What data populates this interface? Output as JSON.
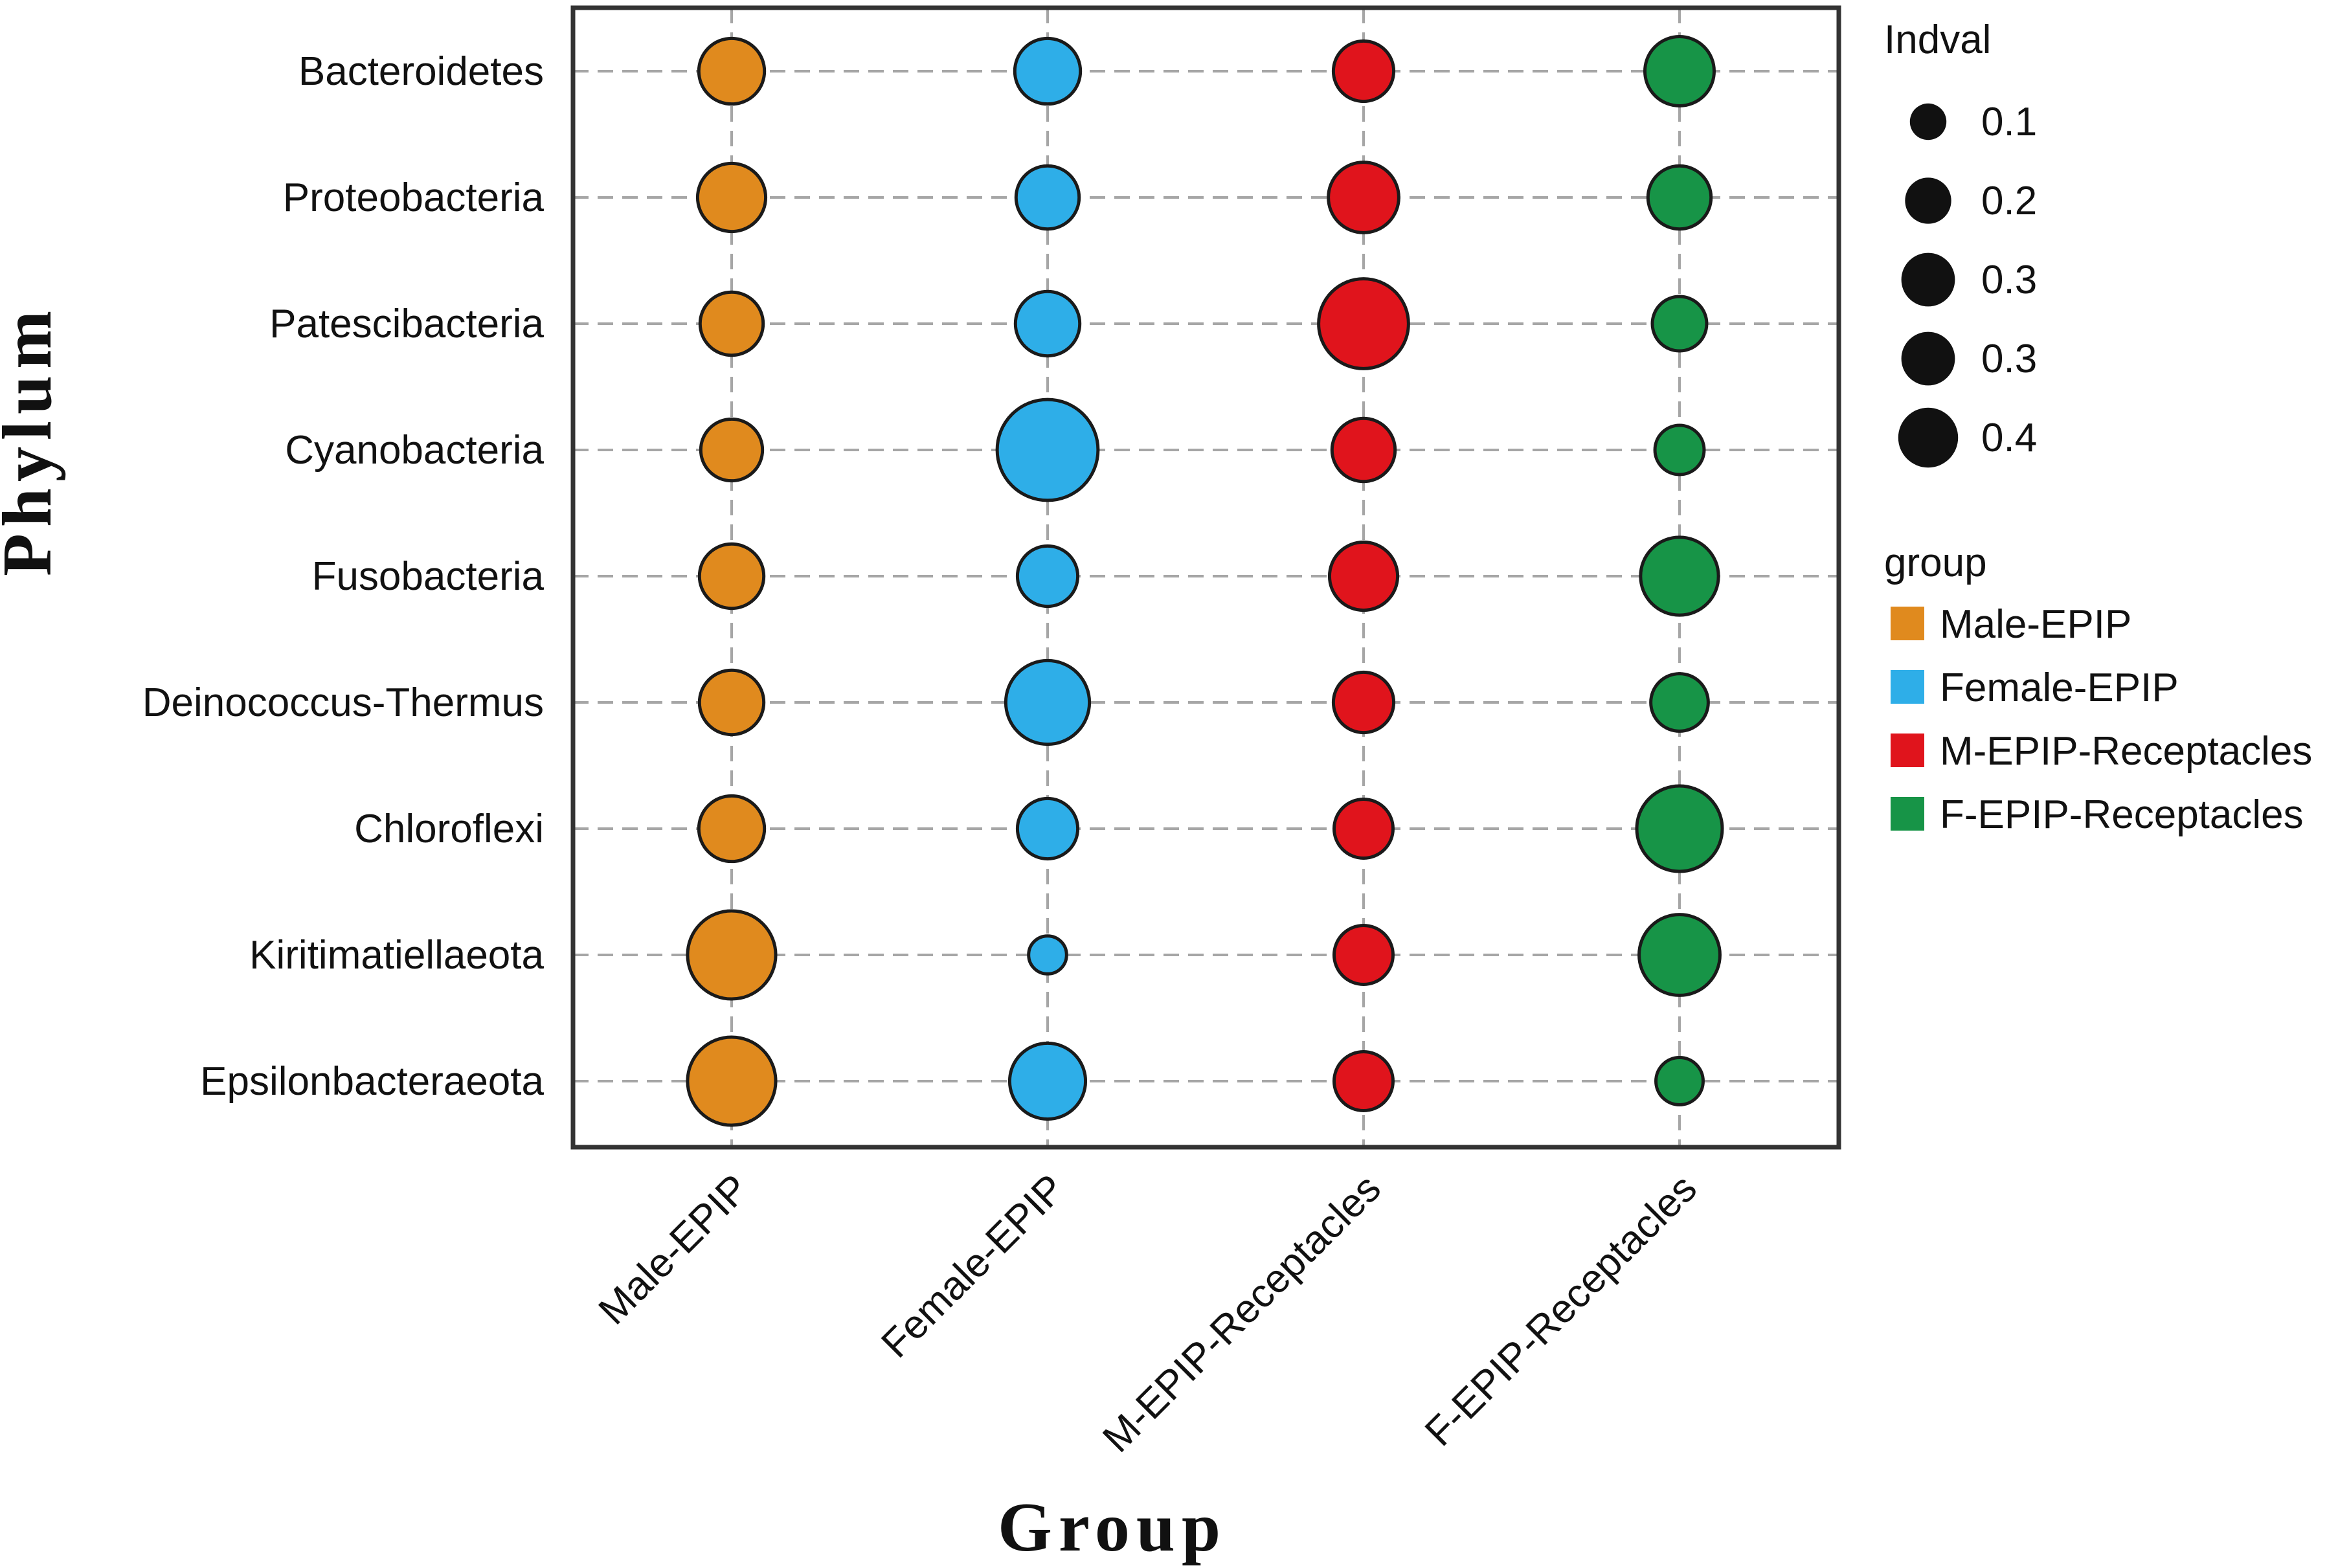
{
  "chart_data": {
    "type": "scatter",
    "xlabel": "Group",
    "ylabel": "Phylum",
    "categories_x": [
      "Male-EPIP",
      "Female-EPIP",
      "M-EPIP-Receptacles",
      "F-EPIP-Receptacles"
    ],
    "categories_y": [
      "Bacteroidetes",
      "Proteobacteria",
      "Patescibacteria",
      "Cyanobacteria",
      "Fusobacteria",
      "Deinococcus-Thermus",
      "Chloroflexi",
      "Kiritimatiellaeota",
      "Epsilonbacteraeota"
    ],
    "series": [
      {
        "name": "Male-EPIP",
        "color": "#e08a1e",
        "values": [
          0.2,
          0.22,
          0.18,
          0.17,
          0.19,
          0.19,
          0.2,
          0.42,
          0.42
        ]
      },
      {
        "name": "Female-EPIP",
        "color": "#2eaee8",
        "values": [
          0.2,
          0.18,
          0.19,
          0.58,
          0.16,
          0.37,
          0.16,
          0.04,
          0.29
        ]
      },
      {
        "name": "M-EPIP-Receptacles",
        "color": "#e0141c",
        "values": [
          0.16,
          0.24,
          0.44,
          0.18,
          0.22,
          0.16,
          0.15,
          0.15,
          0.15
        ]
      },
      {
        "name": "F-EPIP-Receptacles",
        "color": "#179447",
        "values": [
          0.23,
          0.18,
          0.12,
          0.09,
          0.31,
          0.14,
          0.39,
          0.34,
          0.08
        ]
      }
    ],
    "size_legend": {
      "title": "Indval",
      "values": [
        0.1,
        0.2,
        0.3,
        0.3,
        0.4
      ],
      "labels": [
        "0.1",
        "0.2",
        "0.3",
        "0.3",
        "0.4"
      ]
    },
    "color_legend": {
      "title": "group",
      "items": [
        {
          "label": "Male-EPIP",
          "color": "#e08a1e"
        },
        {
          "label": "Female-EPIP",
          "color": "#2eaee8"
        },
        {
          "label": "M-EPIP-Receptacles",
          "color": "#e0141c"
        },
        {
          "label": "F-EPIP-Receptacles",
          "color": "#179447"
        }
      ]
    },
    "grid": true
  }
}
